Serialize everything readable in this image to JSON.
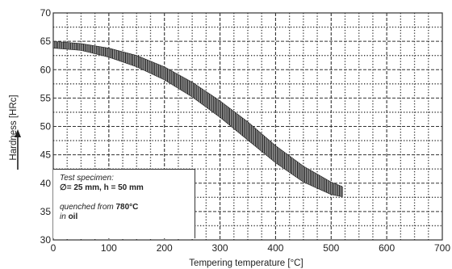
{
  "chart_data": {
    "type": "area",
    "title": "",
    "xlabel": "Tempering temperature [°C]",
    "ylabel": "Hardness [HRc]",
    "xlim": [
      0,
      700
    ],
    "ylim": [
      30,
      70
    ],
    "x_ticks": [
      0,
      100,
      200,
      300,
      400,
      500,
      600,
      700
    ],
    "y_ticks": [
      30,
      35,
      40,
      45,
      50,
      55,
      60,
      65,
      70
    ],
    "grid": true,
    "legend": "none",
    "series": [
      {
        "x": [
          0,
          50,
          100,
          150,
          200,
          250,
          300,
          350,
          400,
          450,
          500,
          520
        ],
        "upper": [
          65,
          64.6,
          63.8,
          62.5,
          60.5,
          57.8,
          54.5,
          50.8,
          46.6,
          43,
          40.2,
          39.4
        ],
        "lower": [
          63.8,
          63.4,
          62.2,
          60.5,
          58.2,
          55.2,
          51.6,
          47.6,
          43.6,
          40.2,
          38,
          37.6
        ]
      }
    ],
    "band_color": "#1a1a1a"
  },
  "note": {
    "line1": "Test specimen:",
    "line2": "= 25 mm, h = 50 mm",
    "line3_pre": "quenched from",
    "line3_bold": "780°C",
    "line4_pre": "in",
    "line4_bold": "oil"
  }
}
